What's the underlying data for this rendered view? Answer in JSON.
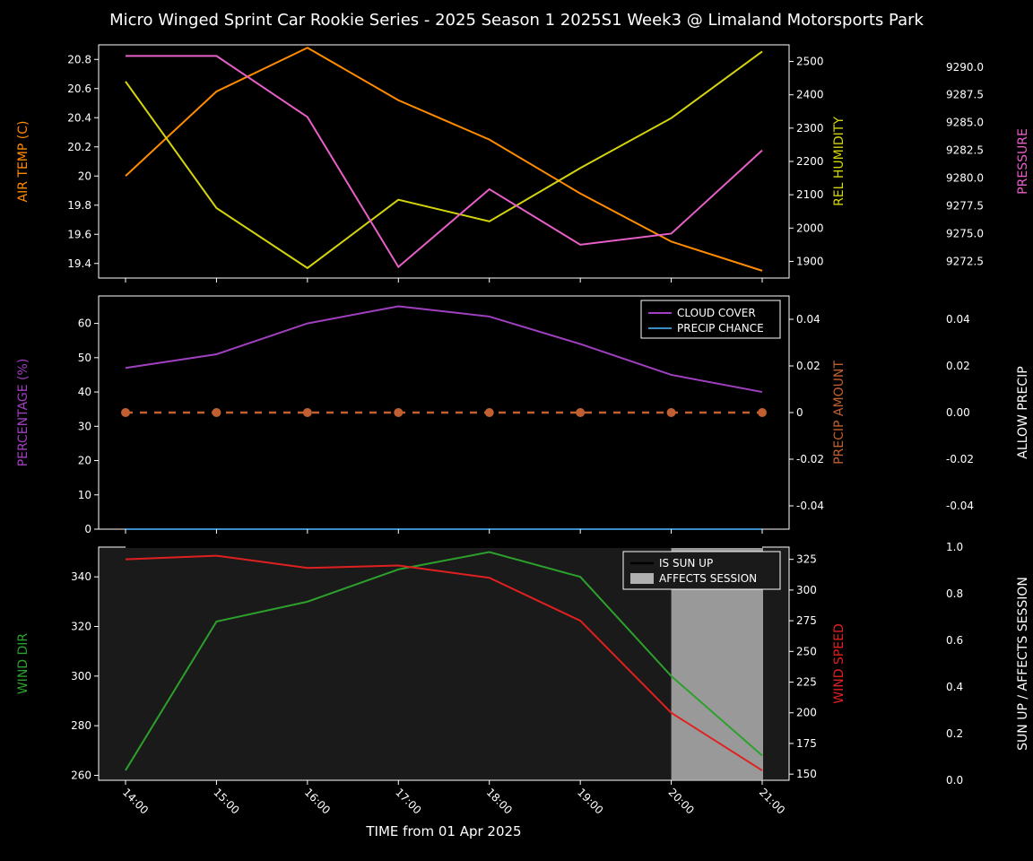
{
  "title": "Micro Winged Sprint Car Rookie Series - 2025 Season 1 2025S1 Week3 @ Limaland Motorsports Park",
  "title_color": "#ffffff",
  "title_fontsize": 18,
  "background": "#000000",
  "ticklabel_color": "#ffffff",
  "ticklabel_fontsize": 12,
  "axlabel_fontsize": 14,
  "x": {
    "time_labels": [
      "14:00",
      "15:00",
      "16:00",
      "17:00",
      "18:00",
      "19:00",
      "20:00",
      "21:00"
    ],
    "label": "TIME from 01 Apr 2025"
  },
  "panel1": {
    "plot_bg": "#000000",
    "border": "#ffffff",
    "air_temp": {
      "label": "AIR TEMP (C)",
      "color": "#ff8c00",
      "values": [
        20.0,
        20.58,
        20.88,
        20.52,
        20.25,
        19.88,
        19.55,
        19.35
      ],
      "ylim": [
        19.3,
        20.9
      ],
      "ticks": [
        19.4,
        19.6,
        19.8,
        20.0,
        20.2,
        20.4,
        20.6,
        20.8
      ]
    },
    "rel_humidity": {
      "label": "REL HUMIDITY",
      "color": "#d4d40e",
      "values": [
        2440,
        2060,
        1880,
        2085,
        2020,
        2180,
        2330,
        2530
      ],
      "ylim": [
        1850,
        2550
      ],
      "ticks": [
        1900,
        2000,
        2100,
        2200,
        2300,
        2400,
        2500
      ]
    },
    "pressure": {
      "label": "PRESSURE",
      "color": "#e85fc7",
      "values": [
        9291.0,
        9291.0,
        9285.5,
        9272.0,
        9279.0,
        9274.0,
        9275.0,
        9282.5
      ],
      "ylim": [
        9271,
        9292
      ],
      "ticks": [
        9272.5,
        9275.0,
        9277.5,
        9280.0,
        9282.5,
        9285.0,
        9287.5,
        9290.0
      ]
    }
  },
  "panel2": {
    "plot_bg": "#000000",
    "border": "#ffffff",
    "percentage": {
      "label": "PERCENTAGE (%)",
      "color": "#a040c0",
      "ylim": [
        0,
        68
      ],
      "ticks": [
        0,
        10,
        20,
        30,
        40,
        50,
        60
      ]
    },
    "cloud_cover": {
      "legend": "CLOUD COVER",
      "color": "#a040c0",
      "values": [
        47,
        51,
        60,
        65,
        62,
        54,
        45,
        40
      ]
    },
    "precip_chance": {
      "legend": "PRECIP CHANCE",
      "color": "#3c8cc8",
      "values": [
        0,
        0,
        0,
        0,
        0,
        0,
        0,
        0
      ]
    },
    "precip_amount": {
      "label": "PRECIP AMOUNT",
      "color": "#c06030",
      "values": [
        0,
        0,
        0,
        0,
        0,
        0,
        0,
        0
      ],
      "ylim": [
        -0.05,
        0.05
      ],
      "ticks": [
        -0.04,
        -0.02,
        0.0,
        0.02,
        0.04
      ]
    },
    "allow_precip": {
      "label": "ALLOW PRECIP",
      "color": "#ffffff",
      "ylim": [
        -0.05,
        0.05
      ],
      "ticks": [
        -0.04,
        -0.02,
        0.0,
        0.02,
        0.04
      ]
    }
  },
  "panel3": {
    "plot_bg": "#1a1a1a",
    "border": "#ffffff",
    "wind_dir": {
      "label": "WIND DIR",
      "color": "#2ca02c",
      "values": [
        262,
        322,
        330,
        343,
        350,
        340,
        300,
        268
      ],
      "ylim": [
        258,
        352
      ],
      "ticks": [
        260,
        280,
        300,
        320,
        340
      ]
    },
    "wind_speed": {
      "label": "WIND SPEED",
      "color": "#e02020",
      "values": [
        325,
        328,
        318,
        320,
        310,
        275,
        200,
        153
      ],
      "ylim": [
        145,
        335
      ],
      "ticks": [
        150,
        175,
        200,
        225,
        250,
        275,
        300,
        325
      ]
    },
    "sun": {
      "label": "SUN UP / AFFECTS SESSION",
      "color": "#ffffff",
      "ylim": [
        0.0,
        1.0
      ],
      "ticks": [
        0.0,
        0.2,
        0.4,
        0.6,
        0.8,
        1.0
      ]
    },
    "is_sun_up_legend": "IS SUN UP",
    "affects_session_legend": "AFFECTS SESSION",
    "affects_fill_color": "#b0b0b0",
    "affects_region": [
      6,
      7
    ],
    "is_sun_up": [
      1,
      1,
      1,
      1,
      1,
      1,
      1,
      1
    ]
  }
}
